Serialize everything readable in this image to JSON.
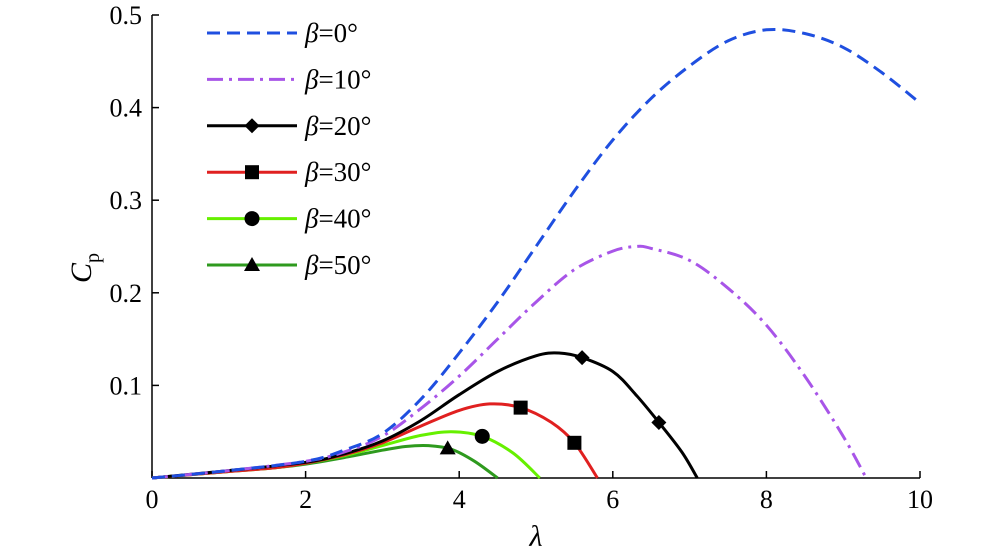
{
  "chart_data": {
    "type": "line",
    "xlabel": "λ",
    "ylabel": {
      "main": "C",
      "sub": "p"
    },
    "xlim": [
      0,
      10
    ],
    "ylim": [
      0,
      0.5
    ],
    "xticks": [
      {
        "value": 0,
        "label": "0"
      },
      {
        "value": 2,
        "label": "2"
      },
      {
        "value": 4,
        "label": "4"
      },
      {
        "value": 6,
        "label": "6"
      },
      {
        "value": 8,
        "label": "8"
      },
      {
        "value": 10,
        "label": "10"
      }
    ],
    "yticks": [
      {
        "value": 0.1,
        "label": "0.1"
      },
      {
        "value": 0.2,
        "label": "0.2"
      },
      {
        "value": 0.3,
        "label": "0.3"
      },
      {
        "value": 0.4,
        "label": "0.4"
      },
      {
        "value": 0.5,
        "label": "0.5"
      }
    ],
    "grid": false,
    "legend_position": "top-left",
    "series": [
      {
        "name": "β=0°",
        "beta_symbol": "β",
        "beta_value": "=0°",
        "color": "#1f4fe0",
        "dash": "dashed",
        "marker": "none",
        "x": [
          0,
          1,
          2,
          2.5,
          3,
          3.5,
          4,
          4.5,
          5,
          5.5,
          6,
          6.5,
          7,
          7.5,
          8,
          8.5,
          9,
          9.5,
          10
        ],
        "y": [
          0,
          0.008,
          0.018,
          0.03,
          0.048,
          0.085,
          0.135,
          0.19,
          0.25,
          0.31,
          0.365,
          0.41,
          0.445,
          0.472,
          0.484,
          0.48,
          0.465,
          0.438,
          0.405
        ]
      },
      {
        "name": "β=10°",
        "beta_symbol": "β",
        "beta_value": "=10°",
        "color": "#a855e8",
        "dash": "dashdot",
        "marker": "none",
        "x": [
          0,
          1,
          2,
          2.5,
          3,
          3.5,
          4,
          4.5,
          5,
          5.5,
          6,
          6.3,
          6.5,
          7,
          7.5,
          8,
          8.5,
          9,
          9.3
        ],
        "y": [
          0,
          0.008,
          0.018,
          0.028,
          0.045,
          0.075,
          0.11,
          0.15,
          0.19,
          0.225,
          0.245,
          0.25,
          0.248,
          0.235,
          0.205,
          0.165,
          0.11,
          0.045,
          0
        ]
      },
      {
        "name": "β=20°",
        "beta_symbol": "β",
        "beta_value": "=20°",
        "color": "#000000",
        "dash": "solid",
        "marker": "diamond",
        "x": [
          0,
          1,
          2,
          2.5,
          3,
          3.5,
          4,
          4.5,
          5,
          5.3,
          5.6,
          6,
          6.3,
          6.6,
          6.9,
          7.1
        ],
        "y": [
          0,
          0.008,
          0.017,
          0.026,
          0.04,
          0.062,
          0.09,
          0.115,
          0.132,
          0.135,
          0.13,
          0.115,
          0.09,
          0.06,
          0.028,
          0
        ],
        "marker_points": [
          [
            5.6,
            0.13
          ],
          [
            6.6,
            0.06
          ]
        ]
      },
      {
        "name": "β=30°",
        "beta_symbol": "β",
        "beta_value": "=30°",
        "color": "#e02020",
        "dash": "solid",
        "marker": "square",
        "x": [
          0,
          1,
          1.6,
          2,
          2.5,
          3,
          3.5,
          4,
          4.4,
          4.8,
          5.2,
          5.5,
          5.8
        ],
        "y": [
          0,
          0.007,
          0.011,
          0.016,
          0.025,
          0.038,
          0.056,
          0.073,
          0.08,
          0.076,
          0.06,
          0.038,
          0
        ],
        "marker_points": [
          [
            4.8,
            0.076
          ],
          [
            5.5,
            0.038
          ]
        ]
      },
      {
        "name": "β=40°",
        "beta_symbol": "β",
        "beta_value": "=40°",
        "color": "#66f000",
        "dash": "solid",
        "marker": "circle",
        "x": [
          0,
          1,
          1.6,
          2,
          2.5,
          3,
          3.5,
          3.9,
          4.3,
          4.7,
          5.05
        ],
        "y": [
          0,
          0.007,
          0.011,
          0.016,
          0.024,
          0.035,
          0.046,
          0.05,
          0.045,
          0.027,
          0
        ],
        "marker_points": [
          [
            4.3,
            0.045
          ]
        ]
      },
      {
        "name": "β=50°",
        "beta_symbol": "β",
        "beta_value": "=50°",
        "color": "#2e9a1e",
        "dash": "solid",
        "marker": "triangle",
        "x": [
          0,
          1,
          1.6,
          2,
          2.5,
          3,
          3.3,
          3.6,
          3.9,
          4.2,
          4.5
        ],
        "y": [
          0,
          0.007,
          0.011,
          0.015,
          0.022,
          0.03,
          0.034,
          0.035,
          0.031,
          0.018,
          0
        ],
        "marker_points": [
          [
            3.85,
            0.032
          ]
        ]
      }
    ]
  }
}
